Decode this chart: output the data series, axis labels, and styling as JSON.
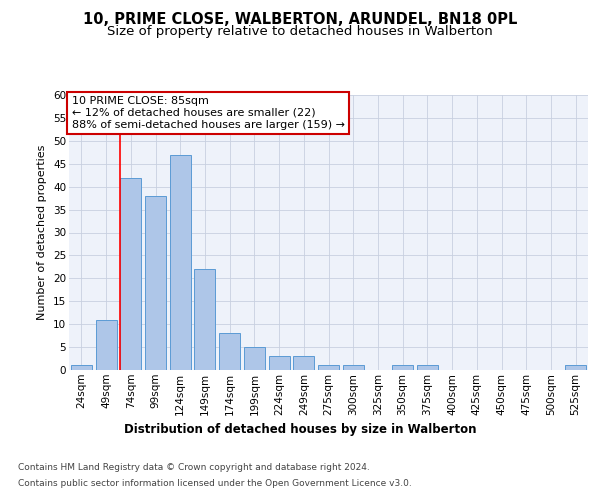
{
  "title": "10, PRIME CLOSE, WALBERTON, ARUNDEL, BN18 0PL",
  "subtitle": "Size of property relative to detached houses in Walberton",
  "xlabel": "Distribution of detached houses by size in Walberton",
  "ylabel": "Number of detached properties",
  "categories": [
    "24sqm",
    "49sqm",
    "74sqm",
    "99sqm",
    "124sqm",
    "149sqm",
    "174sqm",
    "199sqm",
    "224sqm",
    "249sqm",
    "275sqm",
    "300sqm",
    "325sqm",
    "350sqm",
    "375sqm",
    "400sqm",
    "425sqm",
    "450sqm",
    "475sqm",
    "500sqm",
    "525sqm"
  ],
  "values": [
    1,
    11,
    42,
    38,
    47,
    22,
    8,
    5,
    3,
    3,
    1,
    1,
    0,
    1,
    1,
    0,
    0,
    0,
    0,
    0,
    1
  ],
  "bar_color": "#aec6e8",
  "bar_edge_color": "#5b9bd5",
  "property_line_index": 2,
  "annotation_line1": "10 PRIME CLOSE: 85sqm",
  "annotation_line2": "← 12% of detached houses are smaller (22)",
  "annotation_line3": "88% of semi-detached houses are larger (159) →",
  "annotation_box_color": "#cc0000",
  "ylim": [
    0,
    60
  ],
  "yticks": [
    0,
    5,
    10,
    15,
    20,
    25,
    30,
    35,
    40,
    45,
    50,
    55,
    60
  ],
  "grid_color": "#c8d0e0",
  "background_color": "#eef2fa",
  "footer1": "Contains HM Land Registry data © Crown copyright and database right 2024.",
  "footer2": "Contains public sector information licensed under the Open Government Licence v3.0.",
  "title_fontsize": 10.5,
  "subtitle_fontsize": 9.5,
  "xlabel_fontsize": 8.5,
  "ylabel_fontsize": 8,
  "tick_fontsize": 7.5,
  "annotation_fontsize": 8,
  "footer_fontsize": 6.5
}
